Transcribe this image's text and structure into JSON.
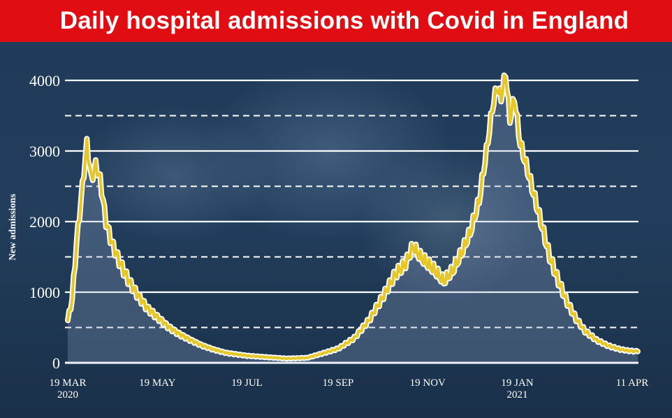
{
  "title": "Daily hospital admissions with Covid in England",
  "chart_data": {
    "type": "line",
    "title": "Daily hospital admissions with Covid in England",
    "xlabel": "",
    "ylabel": "New admissions",
    "ylim": [
      0,
      4000
    ],
    "yticks": [
      "0",
      "1000",
      "2000",
      "3000",
      "4000"
    ],
    "dashed_gridlines_at": [
      500,
      1500,
      2500,
      3500
    ],
    "xticks": [
      {
        "label": "19 MAR",
        "sub": "2020",
        "date": "2020-03-19"
      },
      {
        "label": "19 MAY",
        "sub": "",
        "date": "2020-05-19"
      },
      {
        "label": "19 JUL",
        "sub": "",
        "date": "2020-07-19"
      },
      {
        "label": "19 SEP",
        "sub": "",
        "date": "2020-09-19"
      },
      {
        "label": "19 NOV",
        "sub": "",
        "date": "2020-11-19"
      },
      {
        "label": "19 JAN",
        "sub": "2021",
        "date": "2021-01-19"
      },
      {
        "label": "11 APR",
        "sub": "",
        "date": "2021-04-11"
      }
    ],
    "line_color": "#e6c72a",
    "series": [
      {
        "name": "",
        "points": [
          [
            "2020-03-19",
            600
          ],
          [
            "2020-03-22",
            900
          ],
          [
            "2020-03-25",
            1700
          ],
          [
            "2020-03-29",
            2500
          ],
          [
            "2020-04-01",
            3100
          ],
          [
            "2020-04-04",
            2600
          ],
          [
            "2020-04-07",
            2800
          ],
          [
            "2020-04-10",
            2600
          ],
          [
            "2020-04-14",
            2000
          ],
          [
            "2020-04-18",
            1700
          ],
          [
            "2020-04-24",
            1400
          ],
          [
            "2020-04-30",
            1150
          ],
          [
            "2020-05-06",
            950
          ],
          [
            "2020-05-12",
            780
          ],
          [
            "2020-05-19",
            650
          ],
          [
            "2020-05-26",
            520
          ],
          [
            "2020-06-02",
            420
          ],
          [
            "2020-06-10",
            330
          ],
          [
            "2020-06-18",
            250
          ],
          [
            "2020-06-26",
            190
          ],
          [
            "2020-07-05",
            140
          ],
          [
            "2020-07-19",
            100
          ],
          [
            "2020-08-01",
            80
          ],
          [
            "2020-08-15",
            60
          ],
          [
            "2020-08-29",
            70
          ],
          [
            "2020-09-08",
            130
          ],
          [
            "2020-09-19",
            200
          ],
          [
            "2020-09-30",
            350
          ],
          [
            "2020-10-10",
            600
          ],
          [
            "2020-10-20",
            950
          ],
          [
            "2020-10-28",
            1250
          ],
          [
            "2020-11-04",
            1400
          ],
          [
            "2020-11-09",
            1650
          ],
          [
            "2020-11-14",
            1500
          ],
          [
            "2020-11-19",
            1400
          ],
          [
            "2020-11-24",
            1300
          ],
          [
            "2020-11-30",
            1150
          ],
          [
            "2020-12-06",
            1300
          ],
          [
            "2020-12-12",
            1550
          ],
          [
            "2020-12-18",
            1850
          ],
          [
            "2020-12-24",
            2300
          ],
          [
            "2020-12-29",
            3000
          ],
          [
            "2021-01-02",
            3600
          ],
          [
            "2021-01-05",
            3900
          ],
          [
            "2021-01-08",
            3750
          ],
          [
            "2021-01-11",
            4100
          ],
          [
            "2021-01-14",
            3450
          ],
          [
            "2021-01-17",
            3750
          ],
          [
            "2021-01-21",
            3100
          ],
          [
            "2021-01-25",
            2800
          ],
          [
            "2021-01-30",
            2400
          ],
          [
            "2021-02-04",
            2000
          ],
          [
            "2021-02-10",
            1500
          ],
          [
            "2021-02-16",
            1150
          ],
          [
            "2021-02-22",
            850
          ],
          [
            "2021-02-28",
            620
          ],
          [
            "2021-03-06",
            450
          ],
          [
            "2021-03-14",
            320
          ],
          [
            "2021-03-22",
            240
          ],
          [
            "2021-03-30",
            190
          ],
          [
            "2021-04-05",
            170
          ],
          [
            "2021-04-11",
            160
          ]
        ]
      }
    ]
  }
}
